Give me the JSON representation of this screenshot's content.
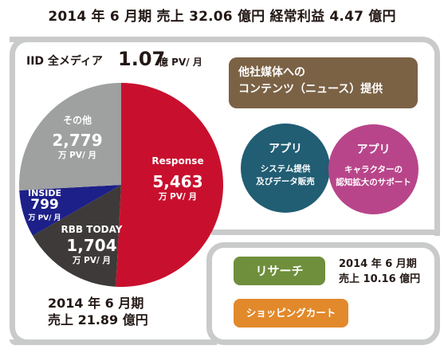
{
  "header": {
    "title": "2014 年 6 月期 売上 32.06 億円  経常利益 4.47 億円"
  },
  "media_total": {
    "label": "IID 全メディア",
    "value": "1.07",
    "unit": "億 PV/ 月"
  },
  "chart_data": {
    "type": "pie",
    "unit": "万 PV/ 月",
    "slices": [
      {
        "name": "Response",
        "value": 5463,
        "value_label": "5,463",
        "color": "#c8102e"
      },
      {
        "name": "RBB TODAY",
        "value": 1704,
        "value_label": "1,704",
        "color": "#3e3a39"
      },
      {
        "name": "INSIDE",
        "value": 799,
        "value_label": "799",
        "color": "#1d2088"
      },
      {
        "name": "その他",
        "value": 2779,
        "value_label": "2,779",
        "color": "#9fa0a0"
      }
    ]
  },
  "left_summary": {
    "line1": "2014 年 6 月期",
    "line2": "売上 21.89 億円"
  },
  "media_box": {
    "line1": "他社媒体への",
    "line2": "コンテンツ（ニュース）提供"
  },
  "app_system": {
    "title": "アプリ",
    "line1": "システム提供",
    "line2": "及びデータ販売",
    "color": "#215d73"
  },
  "app_support": {
    "title": "アプリ",
    "line1": "キャラクターの",
    "line2": "認知拡大のサポート",
    "color": "#b8458a"
  },
  "research": {
    "label": "リサーチ",
    "line1": "2014 年 6 月期",
    "line2": "売上 10.16 億円"
  },
  "shopping": {
    "label": "ショッピングカート"
  }
}
